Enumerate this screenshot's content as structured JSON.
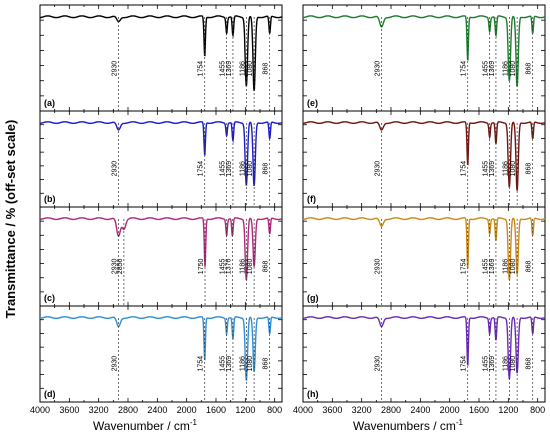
{
  "figure": {
    "ylabel": "Transmittance / % (off-set scale)",
    "xlabel_left": "Wavenumber / cm",
    "xlabel_right": "Wavenumbers / cm",
    "xlabel_sup": "-1",
    "xticks": [
      "4000",
      "3600",
      "3200",
      "2800",
      "2400",
      "2000",
      "1600",
      "1200",
      "800"
    ]
  },
  "chart_data": [
    {
      "type": "line",
      "label": "(a)",
      "color": "#000000",
      "xlim": [
        4000,
        700
      ],
      "annotations": [
        {
          "x": 2930,
          "text": "2930"
        },
        {
          "x": 1754,
          "text": "1754"
        },
        {
          "x": 1455,
          "text": "1455"
        },
        {
          "x": 1369,
          "text": "1369"
        },
        {
          "x": 1186,
          "text": "1186"
        },
        {
          "x": 1080,
          "text": "1080"
        },
        {
          "x": 868,
          "text": "868"
        }
      ],
      "peaks": [
        {
          "x": 2930,
          "depth": 0.06
        },
        {
          "x": 1754,
          "depth": 0.45
        },
        {
          "x": 1455,
          "depth": 0.18
        },
        {
          "x": 1369,
          "depth": 0.22
        },
        {
          "x": 1186,
          "depth": 0.78
        },
        {
          "x": 1080,
          "depth": 0.85
        },
        {
          "x": 868,
          "depth": 0.2
        }
      ]
    },
    {
      "type": "line",
      "label": "(b)",
      "color": "#1a1acc",
      "xlim": [
        4000,
        700
      ],
      "annotations": [
        {
          "x": 2930,
          "text": "2930"
        },
        {
          "x": 1754,
          "text": "1754"
        },
        {
          "x": 1455,
          "text": "1455"
        },
        {
          "x": 1369,
          "text": "1369"
        },
        {
          "x": 1186,
          "text": "1186"
        },
        {
          "x": 1080,
          "text": "1080"
        },
        {
          "x": 868,
          "text": "868"
        }
      ],
      "peaks": [
        {
          "x": 2930,
          "depth": 0.1
        },
        {
          "x": 1754,
          "depth": 0.42
        },
        {
          "x": 1455,
          "depth": 0.16
        },
        {
          "x": 1369,
          "depth": 0.24
        },
        {
          "x": 1186,
          "depth": 0.8
        },
        {
          "x": 1080,
          "depth": 0.82
        },
        {
          "x": 868,
          "depth": 0.22
        }
      ]
    },
    {
      "type": "line",
      "label": "(c)",
      "color": "#b0287a",
      "xlim": [
        4000,
        700
      ],
      "annotations": [
        {
          "x": 2930,
          "text": "2930"
        },
        {
          "x": 2856,
          "text": "2856"
        },
        {
          "x": 1750,
          "text": "1750"
        },
        {
          "x": 1455,
          "text": "1455"
        },
        {
          "x": 1376,
          "text": "1376"
        },
        {
          "x": 1186,
          "text": "1186"
        },
        {
          "x": 1080,
          "text": "1080"
        },
        {
          "x": 868,
          "text": "868"
        }
      ],
      "peaks": [
        {
          "x": 2930,
          "depth": 0.22
        },
        {
          "x": 2856,
          "depth": 0.12
        },
        {
          "x": 1750,
          "depth": 0.6
        },
        {
          "x": 1455,
          "depth": 0.2
        },
        {
          "x": 1376,
          "depth": 0.22
        },
        {
          "x": 1186,
          "depth": 0.75
        },
        {
          "x": 1080,
          "depth": 0.6
        },
        {
          "x": 868,
          "depth": 0.2
        }
      ]
    },
    {
      "type": "line",
      "label": "(d)",
      "color": "#2f8fd6",
      "xlim": [
        4000,
        700
      ],
      "annotations": [
        {
          "x": 2930,
          "text": "2930"
        },
        {
          "x": 1754,
          "text": "1754"
        },
        {
          "x": 1455,
          "text": "1455"
        },
        {
          "x": 1369,
          "text": "1369"
        },
        {
          "x": 1186,
          "text": "1186"
        },
        {
          "x": 1080,
          "text": "1080"
        },
        {
          "x": 868,
          "text": "868"
        }
      ],
      "peaks": [
        {
          "x": 2930,
          "depth": 0.12
        },
        {
          "x": 1754,
          "depth": 0.55
        },
        {
          "x": 1455,
          "depth": 0.2
        },
        {
          "x": 1369,
          "depth": 0.28
        },
        {
          "x": 1186,
          "depth": 0.8
        },
        {
          "x": 1080,
          "depth": 0.7
        },
        {
          "x": 868,
          "depth": 0.22
        }
      ]
    },
    {
      "type": "line",
      "label": "(e)",
      "color": "#1e7a2e",
      "xlim": [
        4000,
        700
      ],
      "annotations": [
        {
          "x": 2930,
          "text": "2930"
        },
        {
          "x": 1754,
          "text": "1754"
        },
        {
          "x": 1455,
          "text": "1455"
        },
        {
          "x": 1369,
          "text": "1369"
        },
        {
          "x": 1186,
          "text": "1186"
        },
        {
          "x": 1080,
          "text": "1080"
        },
        {
          "x": 868,
          "text": "868"
        }
      ],
      "peaks": [
        {
          "x": 2930,
          "depth": 0.12
        },
        {
          "x": 1754,
          "depth": 0.5
        },
        {
          "x": 1455,
          "depth": 0.16
        },
        {
          "x": 1369,
          "depth": 0.22
        },
        {
          "x": 1186,
          "depth": 0.72
        },
        {
          "x": 1080,
          "depth": 0.8
        },
        {
          "x": 868,
          "depth": 0.2
        }
      ]
    },
    {
      "type": "line",
      "label": "(f)",
      "color": "#6e1510",
      "xlim": [
        4000,
        700
      ],
      "annotations": [
        {
          "x": 2930,
          "text": "2930"
        },
        {
          "x": 1754,
          "text": "1754"
        },
        {
          "x": 1455,
          "text": "1455"
        },
        {
          "x": 1369,
          "text": "1369"
        },
        {
          "x": 1186,
          "text": "1186"
        },
        {
          "x": 1080,
          "text": "1080"
        },
        {
          "x": 868,
          "text": "868"
        }
      ],
      "peaks": [
        {
          "x": 2930,
          "depth": 0.1
        },
        {
          "x": 1754,
          "depth": 0.55
        },
        {
          "x": 1455,
          "depth": 0.18
        },
        {
          "x": 1369,
          "depth": 0.28
        },
        {
          "x": 1186,
          "depth": 0.82
        },
        {
          "x": 1080,
          "depth": 0.88
        },
        {
          "x": 868,
          "depth": 0.22
        }
      ]
    },
    {
      "type": "line",
      "label": "(g)",
      "color": "#c98a1a",
      "xlim": [
        4000,
        700
      ],
      "annotations": [
        {
          "x": 2930,
          "text": "2930"
        },
        {
          "x": 1754,
          "text": "1754"
        },
        {
          "x": 1455,
          "text": "1455"
        },
        {
          "x": 1369,
          "text": "1369"
        },
        {
          "x": 1186,
          "text": "1186"
        },
        {
          "x": 1080,
          "text": "1080"
        },
        {
          "x": 868,
          "text": "868"
        }
      ],
      "peaks": [
        {
          "x": 2930,
          "depth": 0.1
        },
        {
          "x": 1754,
          "depth": 0.62
        },
        {
          "x": 1455,
          "depth": 0.18
        },
        {
          "x": 1369,
          "depth": 0.28
        },
        {
          "x": 1186,
          "depth": 0.75
        },
        {
          "x": 1080,
          "depth": 0.7
        },
        {
          "x": 868,
          "depth": 0.22
        }
      ]
    },
    {
      "type": "line",
      "label": "(h)",
      "color": "#6a2ab8",
      "xlim": [
        4000,
        700
      ],
      "annotations": [
        {
          "x": 2930,
          "text": "2930"
        },
        {
          "x": 1754,
          "text": "1754"
        },
        {
          "x": 1455,
          "text": "1455"
        },
        {
          "x": 1369,
          "text": "1369"
        },
        {
          "x": 1186,
          "text": "1186"
        },
        {
          "x": 1080,
          "text": "1080"
        },
        {
          "x": 868,
          "text": "868"
        }
      ],
      "peaks": [
        {
          "x": 2930,
          "depth": 0.12
        },
        {
          "x": 1754,
          "depth": 0.62
        },
        {
          "x": 1455,
          "depth": 0.2
        },
        {
          "x": 1369,
          "depth": 0.3
        },
        {
          "x": 1186,
          "depth": 0.78
        },
        {
          "x": 1080,
          "depth": 0.72
        },
        {
          "x": 868,
          "depth": 0.22
        }
      ]
    }
  ]
}
